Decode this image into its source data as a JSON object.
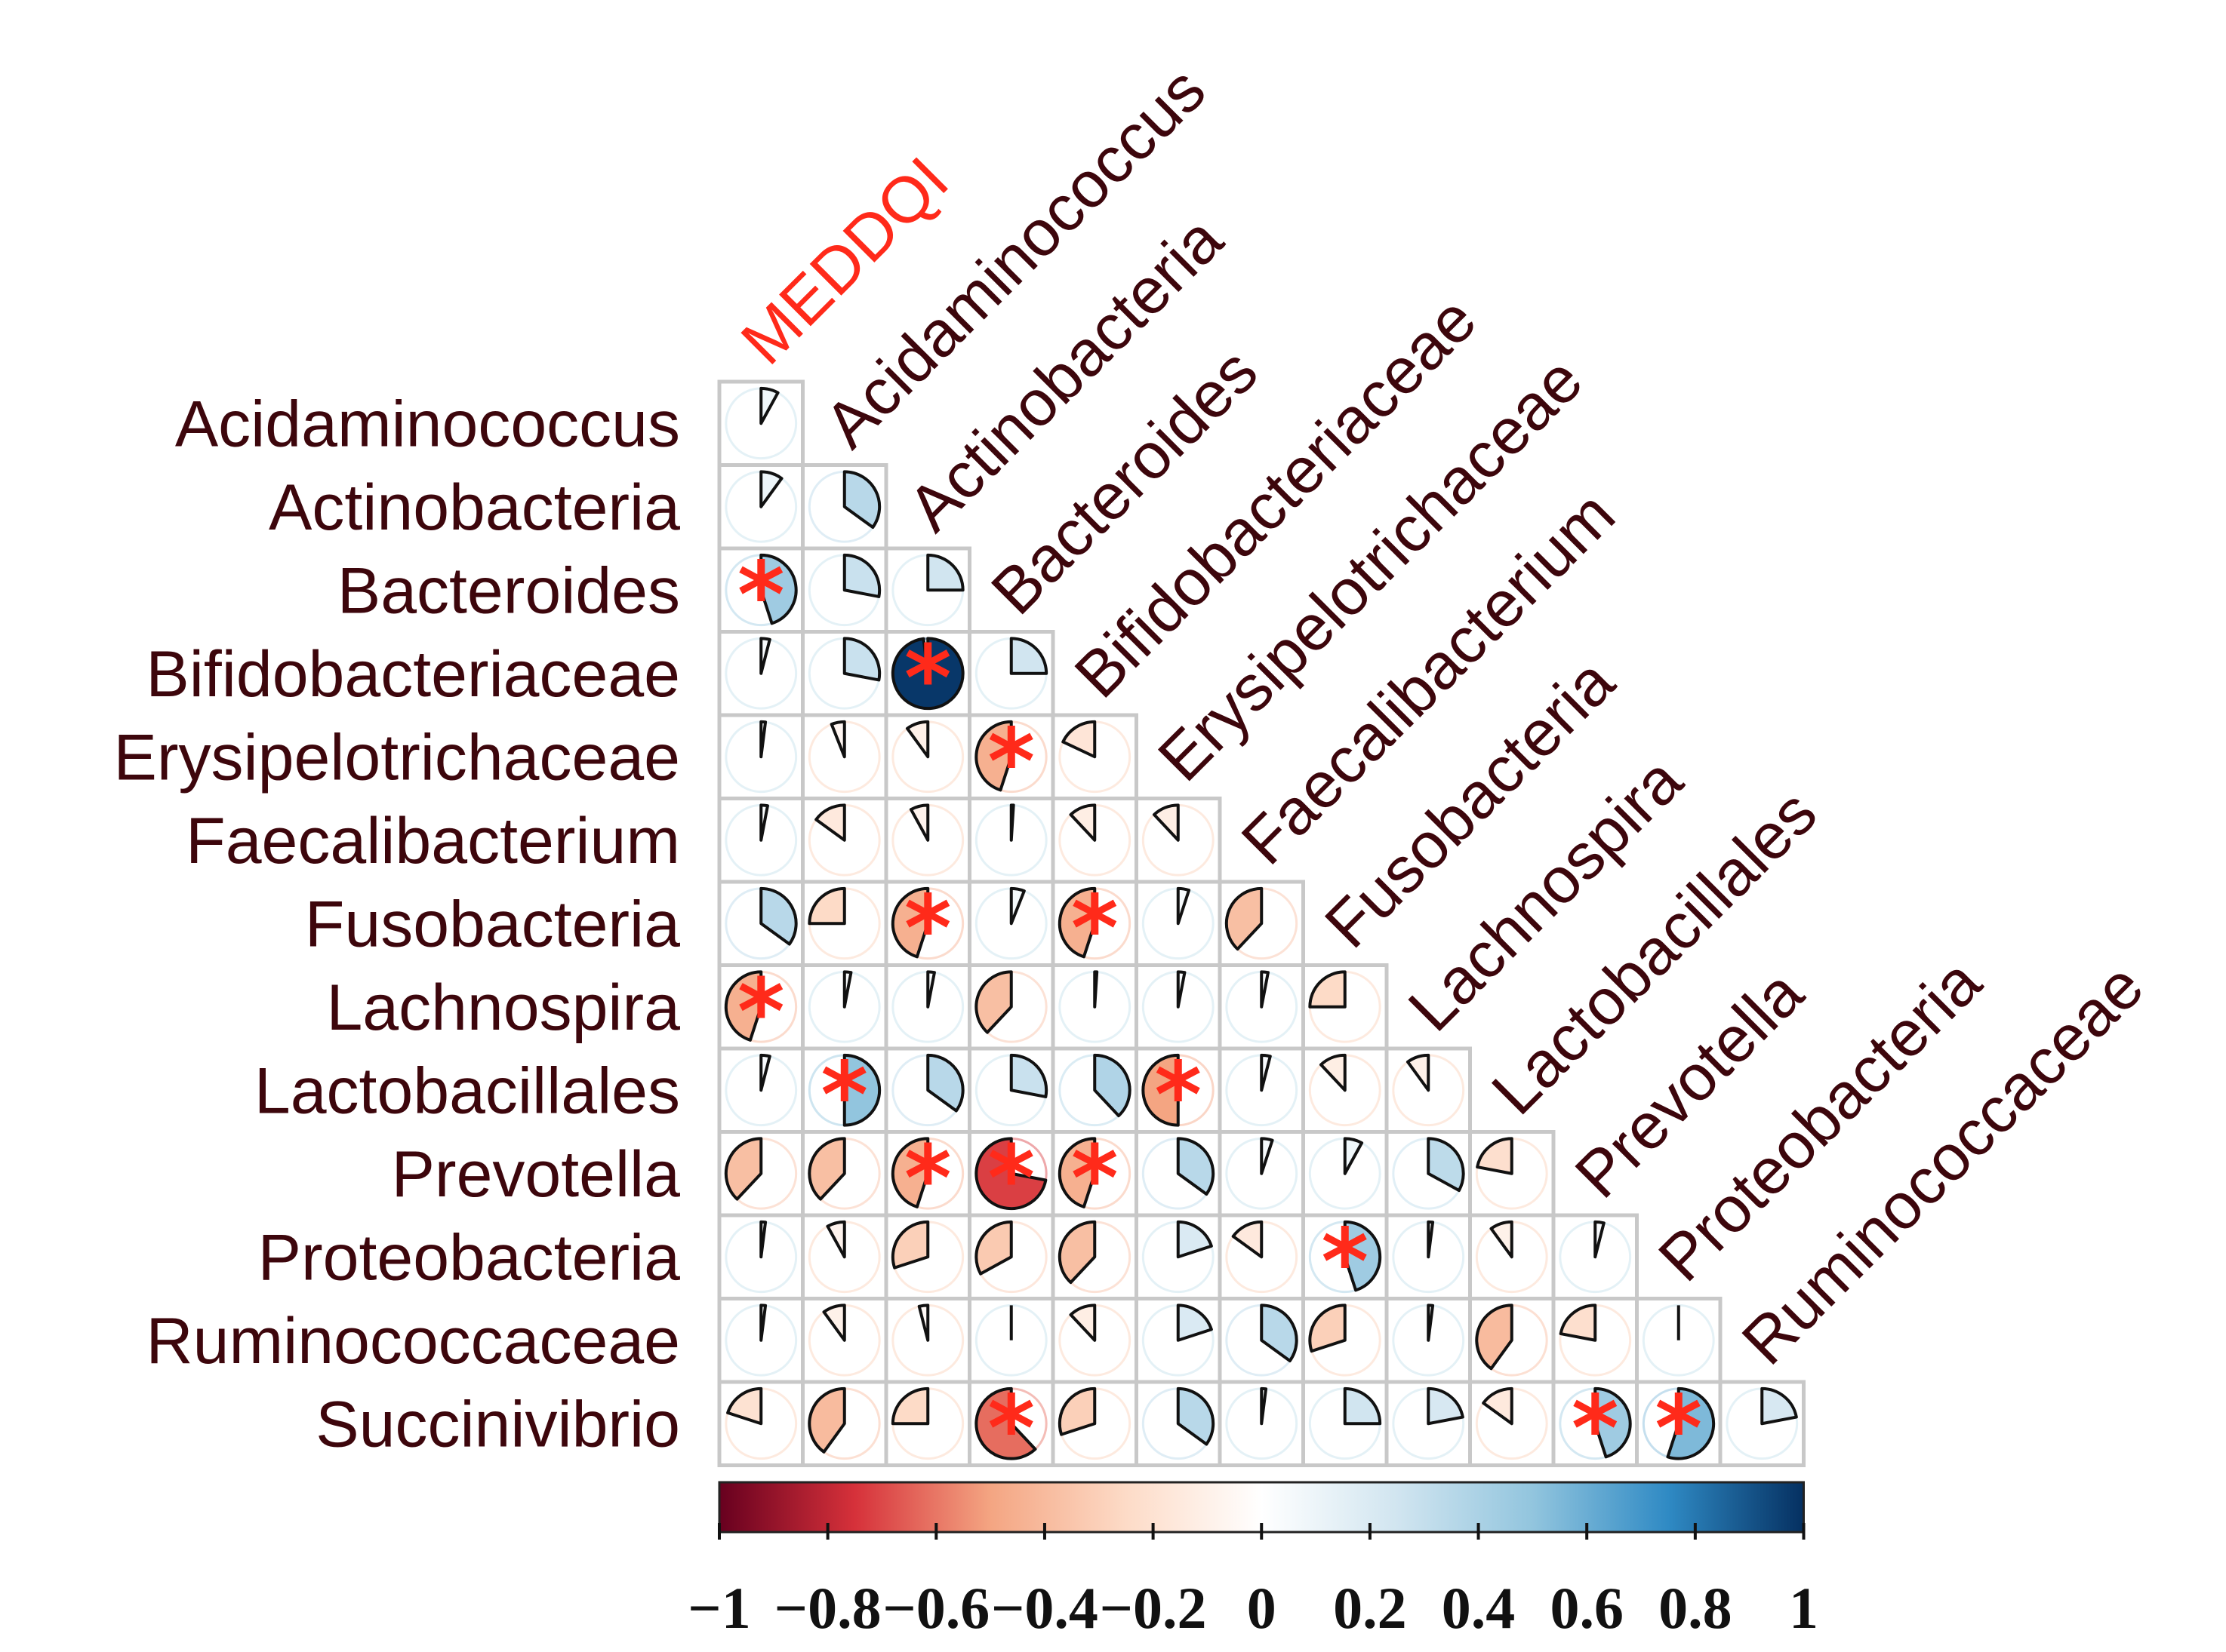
{
  "chart_data": {
    "type": "heatmap",
    "subtype": "correlation-pie-lower-triangle",
    "title": "",
    "row_labels": [
      "Acidaminococcus",
      "Actinobacteria",
      "Bacteroides",
      "Bifidobacteriaceae",
      "Erysipelotrichaceae",
      "Faecalibacterium",
      "Fusobacteria",
      "Lachnospira",
      "Lactobacillales",
      "Prevotella",
      "Proteobacteria",
      "Ruminococcaceae",
      "Succinivibrio"
    ],
    "col_labels": [
      "MEDDQI",
      "Acidaminococcus",
      "Actinobacteria",
      "Bacteroides",
      "Bifidobacteriaceae",
      "Erysipelotrichaceae",
      "Faecalibacterium",
      "Fusobacteria",
      "Lachnospira",
      "Lactobacillales",
      "Prevotella",
      "Proteobacteria",
      "Ruminococcaceae"
    ],
    "highlight_col": "MEDDQI",
    "values": [
      [
        0.08
      ],
      [
        0.1,
        0.35
      ],
      [
        0.45,
        0.28,
        0.25
      ],
      [
        0.04,
        0.28,
        0.98,
        0.25
      ],
      [
        0.02,
        -0.06,
        -0.1,
        -0.45,
        -0.18
      ],
      [
        0.03,
        -0.15,
        -0.08,
        0.01,
        -0.12,
        -0.12
      ],
      [
        0.35,
        -0.25,
        -0.45,
        0.06,
        -0.45,
        0.05,
        -0.38
      ],
      [
        -0.45,
        0.03,
        0.03,
        -0.38,
        0.01,
        0.03,
        0.03,
        -0.25
      ],
      [
        0.04,
        0.5,
        0.35,
        0.28,
        0.38,
        -0.5,
        0.04,
        -0.12,
        -0.1
      ],
      [
        -0.38,
        -0.38,
        -0.45,
        -0.72,
        -0.45,
        0.35,
        0.05,
        0.08,
        0.33,
        -0.22
      ],
      [
        0.02,
        -0.08,
        -0.3,
        -0.33,
        -0.38,
        0.2,
        -0.15,
        0.45,
        0.02,
        -0.1,
        0.04
      ],
      [
        0.02,
        -0.1,
        -0.04,
        0.0,
        -0.12,
        0.2,
        0.35,
        -0.3,
        0.02,
        -0.4,
        -0.22,
        0.0
      ],
      [
        -0.2,
        -0.4,
        -0.25,
        -0.62,
        -0.3,
        0.35,
        0.02,
        0.25,
        0.22,
        -0.15,
        0.45,
        0.55,
        0.22
      ]
    ],
    "significant": [
      [
        false
      ],
      [
        false,
        false
      ],
      [
        true,
        false,
        false
      ],
      [
        false,
        false,
        true,
        false
      ],
      [
        false,
        false,
        false,
        true,
        false
      ],
      [
        false,
        false,
        false,
        false,
        false,
        false
      ],
      [
        false,
        false,
        true,
        false,
        true,
        false,
        false
      ],
      [
        true,
        false,
        false,
        false,
        false,
        false,
        false,
        false
      ],
      [
        false,
        true,
        false,
        false,
        false,
        true,
        false,
        false,
        false
      ],
      [
        false,
        false,
        true,
        true,
        true,
        false,
        false,
        false,
        false,
        false
      ],
      [
        false,
        false,
        false,
        false,
        false,
        false,
        false,
        true,
        false,
        false,
        false
      ],
      [
        false,
        false,
        false,
        false,
        false,
        false,
        false,
        false,
        false,
        false,
        false,
        false
      ],
      [
        false,
        false,
        false,
        true,
        false,
        false,
        false,
        false,
        false,
        false,
        true,
        true,
        false
      ]
    ],
    "significance_marker": "*",
    "colorbar": {
      "range": [
        -1,
        1
      ],
      "ticks": [
        "−1",
        "−0.8",
        "−0.6",
        "−0.4",
        "−0.2",
        "0",
        "0.2",
        "0.4",
        "0.6",
        "0.8",
        "1"
      ],
      "tick_values": [
        -1,
        -0.8,
        -0.6,
        -0.4,
        -0.2,
        0,
        0.2,
        0.4,
        0.6,
        0.8,
        1
      ],
      "position": "bottom",
      "colors": [
        "#67001f",
        "#d6313a",
        "#f4a582",
        "#fddbc7",
        "#ffffff",
        "#d1e5f0",
        "#92c5de",
        "#2f8ac4",
        "#053061"
      ]
    },
    "grid": true
  },
  "colors": {
    "label_text": "#3d060c",
    "highlight_label": "#ff2a1a",
    "star": "#ff2a1a",
    "grid_line": "#c8c8c8",
    "wedge_outline": "#111111"
  }
}
